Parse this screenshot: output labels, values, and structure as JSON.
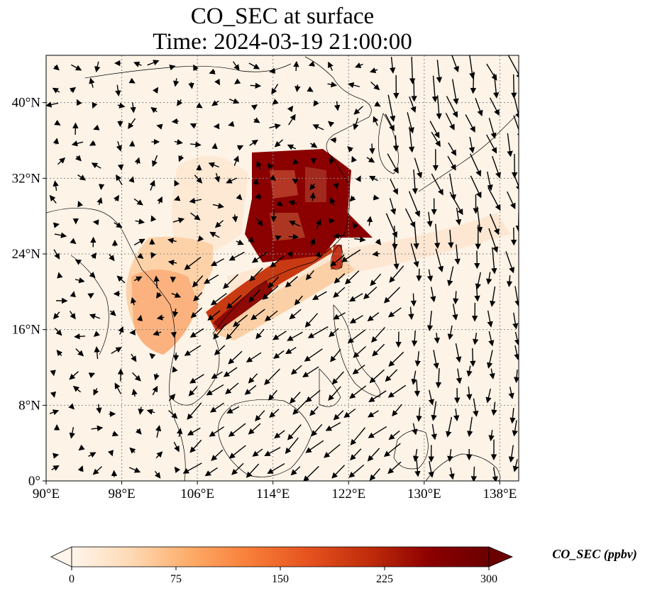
{
  "title": {
    "line1": "CO_SEC at surface",
    "line2": "Time: 2024-03-19 21:00:00"
  },
  "map": {
    "lon_range": [
      90,
      140
    ],
    "lat_range": [
      0,
      45
    ],
    "lon_ticks": [
      {
        "value": 90,
        "label": "90°E"
      },
      {
        "value": 98,
        "label": "98°E"
      },
      {
        "value": 106,
        "label": "106°E"
      },
      {
        "value": 114,
        "label": "114°E"
      },
      {
        "value": 122,
        "label": "122°E"
      },
      {
        "value": 130,
        "label": "130°E"
      },
      {
        "value": 138,
        "label": "138°E"
      }
    ],
    "lat_ticks": [
      {
        "value": 0,
        "label": "0°"
      },
      {
        "value": 8,
        "label": "8°N"
      },
      {
        "value": 16,
        "label": "16°N"
      },
      {
        "value": 24,
        "label": "24°N"
      },
      {
        "value": 32,
        "label": "32°N"
      },
      {
        "value": 40,
        "label": "40°N"
      }
    ],
    "gridlines": true
  },
  "colorbar": {
    "label": "CO_SEC (ppbv)",
    "min": 0,
    "max": 300,
    "extend": "both",
    "colormap": [
      "#fff5eb",
      "#fdd9b4",
      "#fdab67",
      "#f87d38",
      "#e5511e",
      "#c02c0b",
      "#8c0000",
      "#6b0000"
    ],
    "ticks": [
      {
        "value": 0,
        "label": "0"
      },
      {
        "value": 75,
        "label": "75"
      },
      {
        "value": 150,
        "label": "150"
      },
      {
        "value": 225,
        "label": "225"
      },
      {
        "value": 300,
        "label": "300"
      }
    ]
  }
}
